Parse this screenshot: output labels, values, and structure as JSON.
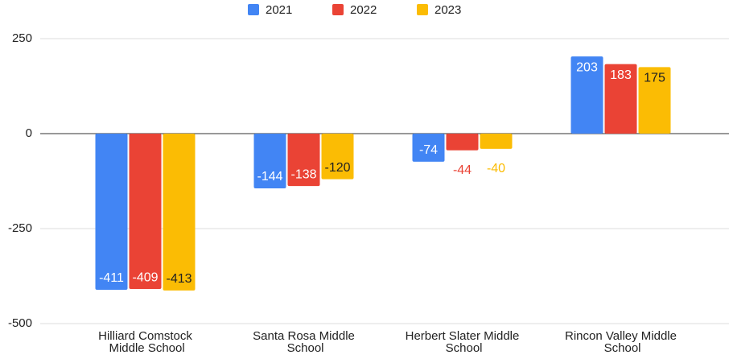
{
  "chart_data": {
    "type": "bar",
    "categories": [
      "Hilliard Comstock Middle School",
      "Santa Rosa Middle School",
      "Herbert Slater Middle School",
      "Rincon Valley Middle School"
    ],
    "series": [
      {
        "name": "2021",
        "color": "#4285f4",
        "values": [
          -411,
          -144,
          -74,
          203
        ]
      },
      {
        "name": "2022",
        "color": "#ea4335",
        "values": [
          -409,
          -138,
          -44,
          183
        ]
      },
      {
        "name": "2023",
        "color": "#fbbc04",
        "values": [
          -413,
          -120,
          -40,
          175
        ]
      }
    ],
    "ylim": [
      -500,
      250
    ],
    "yticks": [
      -500,
      -250,
      0,
      250
    ],
    "grid": true,
    "legend": "top"
  }
}
